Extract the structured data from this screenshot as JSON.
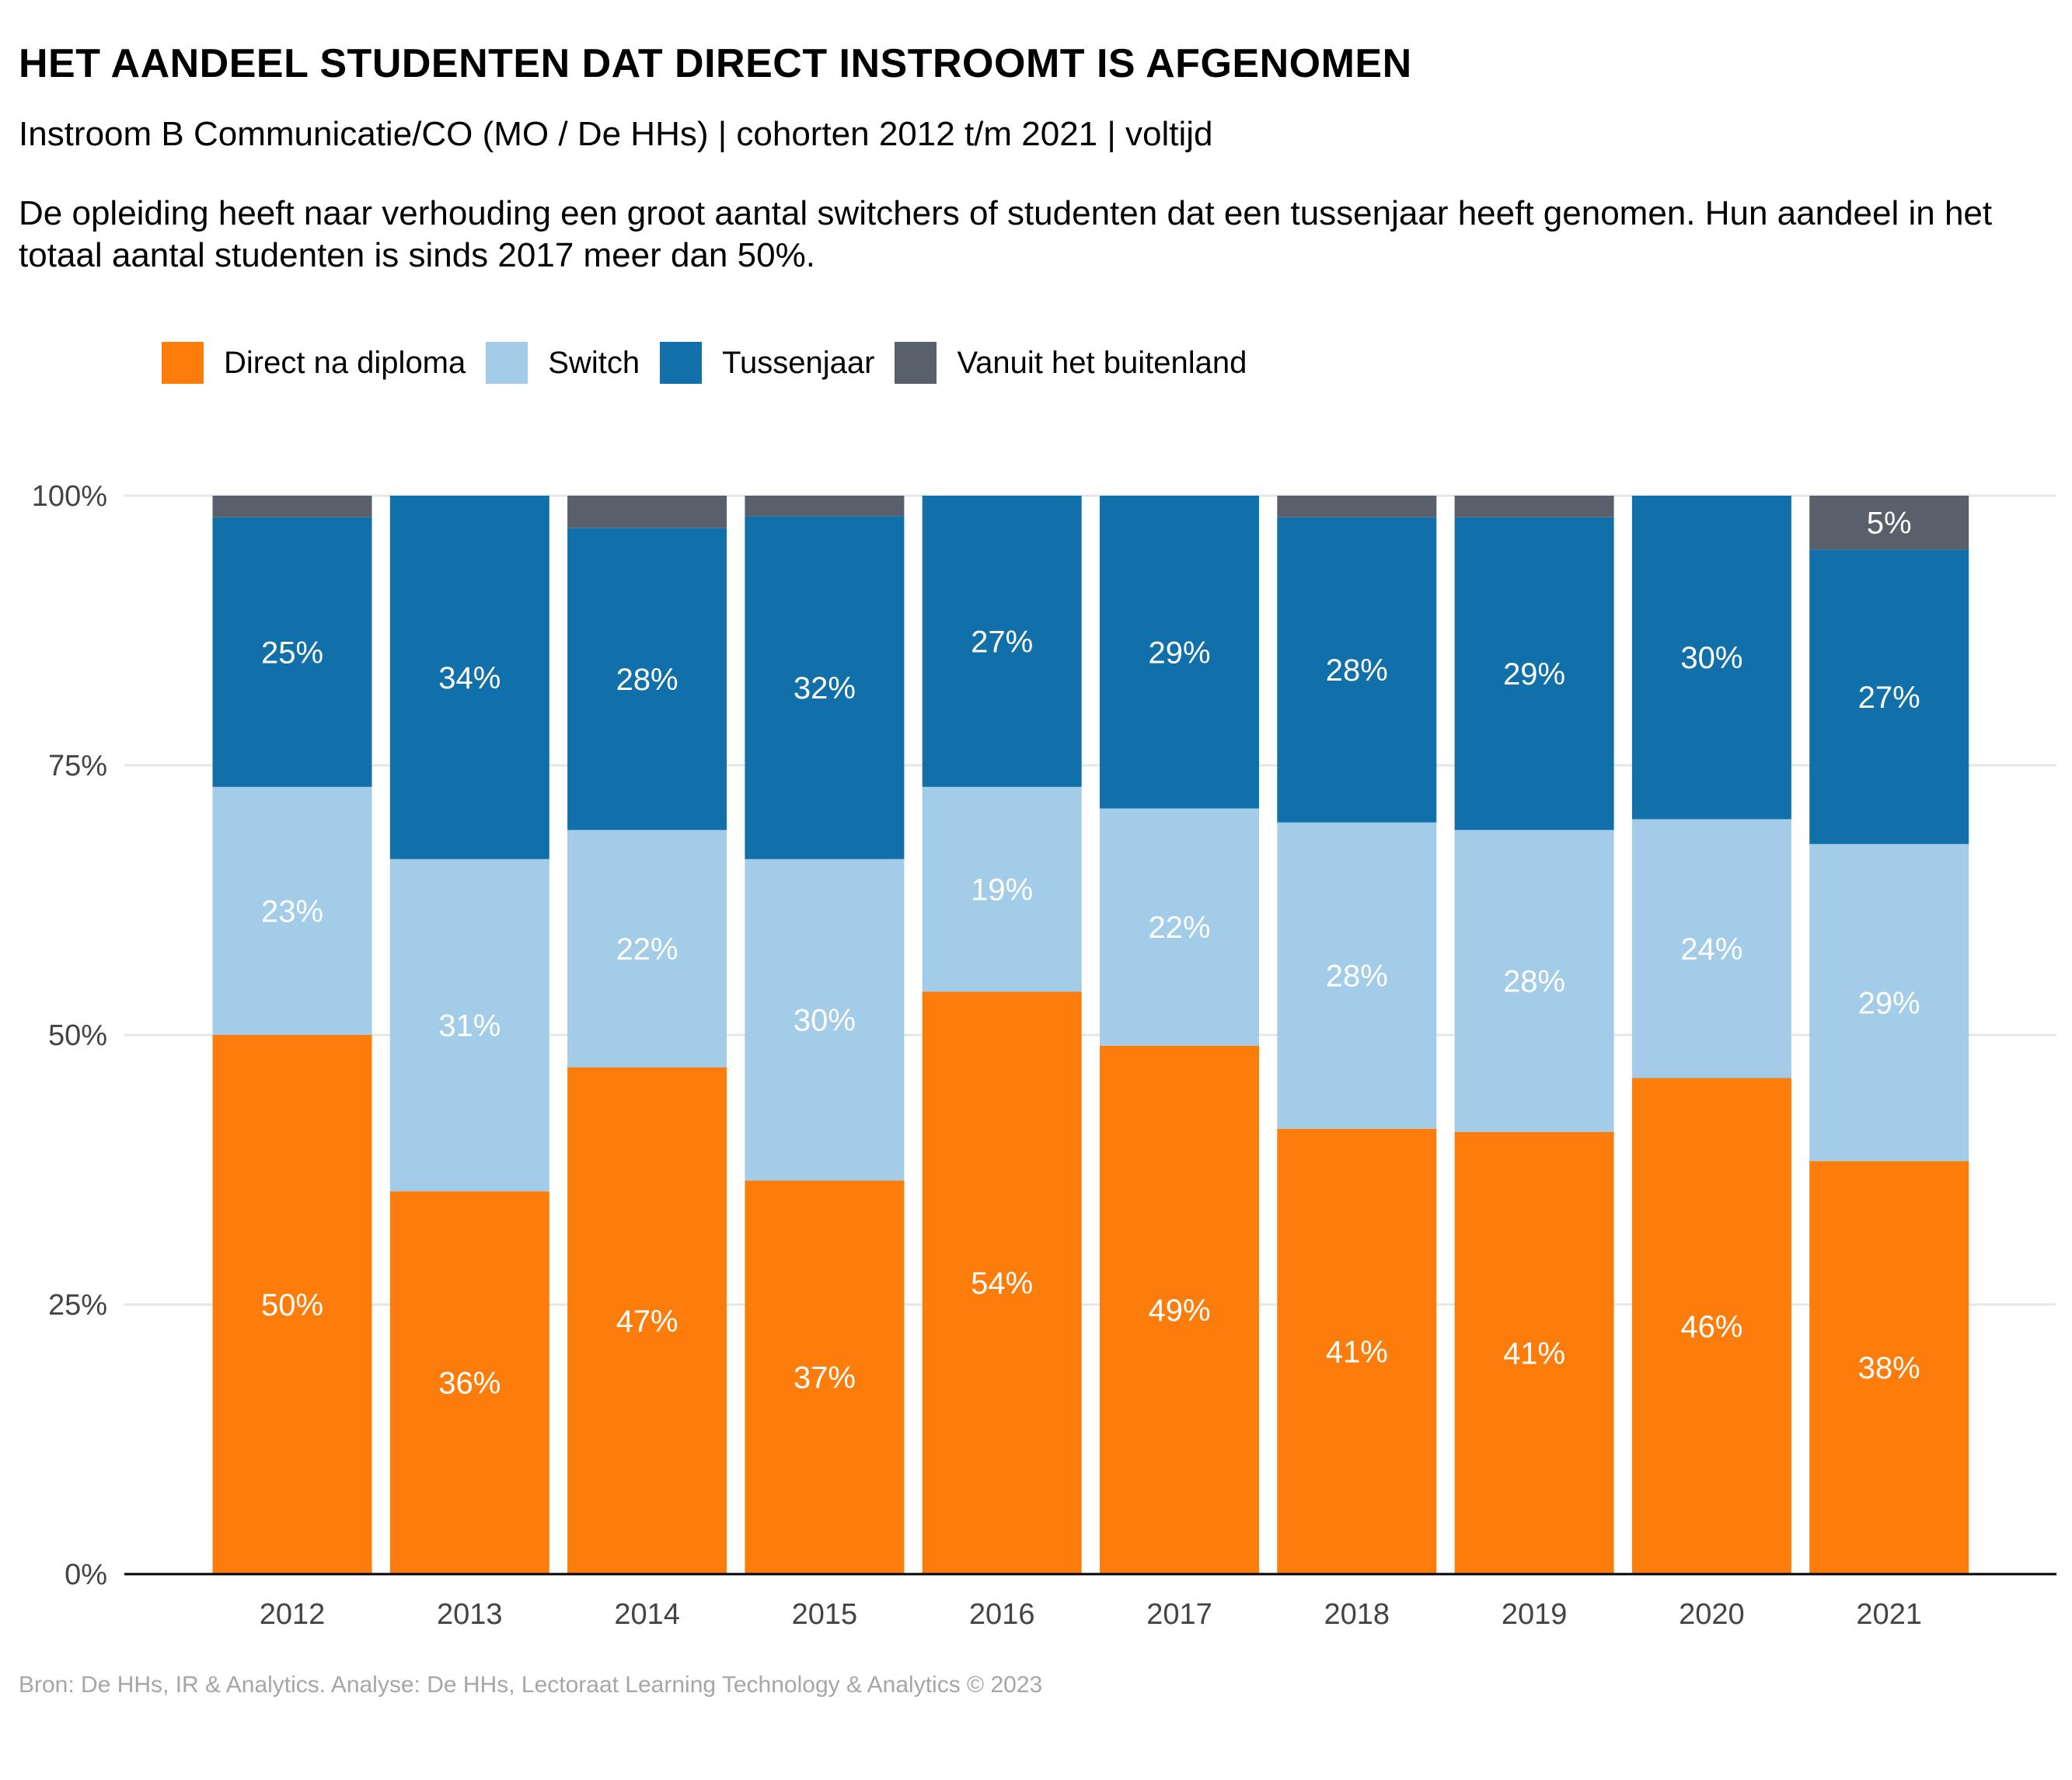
{
  "title": "HET AANDEEL STUDENTEN DAT DIRECT INSTROOMT IS AFGENOMEN",
  "subtitle": "Instroom B Communicatie/CO (MO / De HHs) | cohorten 2012 t/m 2021 | voltijd",
  "description": "De opleiding heeft naar verhouding een groot aantal switchers of studenten dat een tussenjaar heeft genomen. Hun aandeel in het totaal aantal studenten is sinds 2017 meer dan 50%.",
  "caption": "Bron: De HHs, IR & Analytics. Analyse: De HHs, Lectoraat Learning Technology & Analytics © 2023",
  "legend": [
    {
      "label": "Direct na diploma",
      "color": "#FC7D0B"
    },
    {
      "label": "Switch",
      "color": "#A3CCE9"
    },
    {
      "label": "Tussenjaar",
      "color": "#1170AA"
    },
    {
      "label": "Vanuit het buitenland",
      "color": "#5A606B"
    }
  ],
  "chart_data": {
    "type": "bar",
    "stacked": true,
    "categories": [
      "2012",
      "2013",
      "2014",
      "2015",
      "2016",
      "2017",
      "2018",
      "2019",
      "2020",
      "2021"
    ],
    "ylim": [
      0,
      100
    ],
    "yticks": [
      "0%",
      "25%",
      "50%",
      "75%",
      "100%"
    ],
    "ytick_values": [
      0,
      25,
      50,
      75,
      100
    ],
    "grid": true,
    "legend_position": "top-left",
    "series": [
      {
        "name": "Direct na diploma",
        "color": "#FC7D0B",
        "values": [
          50,
          35.5,
          47,
          36.5,
          54,
          49,
          41.3,
          41,
          46,
          38.3
        ],
        "labels": [
          "50%",
          "36%",
          "47%",
          "37%",
          "54%",
          "49%",
          "41%",
          "41%",
          "46%",
          "38%"
        ]
      },
      {
        "name": "Switch",
        "color": "#A3CCE9",
        "values": [
          23,
          30.8,
          22,
          29.8,
          19,
          22,
          28.4,
          28,
          24,
          29.4
        ],
        "labels": [
          "23%",
          "31%",
          "22%",
          "30%",
          "19%",
          "22%",
          "28%",
          "28%",
          "24%",
          "29%"
        ]
      },
      {
        "name": "Tussenjaar",
        "color": "#1170AA",
        "values": [
          25,
          33.7,
          28,
          31.8,
          27,
          29,
          28.3,
          29,
          30,
          27.3
        ],
        "labels": [
          "25%",
          "34%",
          "28%",
          "32%",
          "27%",
          "29%",
          "28%",
          "29%",
          "30%",
          "27%"
        ]
      },
      {
        "name": "Vanuit het buitenland",
        "color": "#5A606B",
        "values": [
          2,
          0,
          3,
          1.9,
          0,
          0,
          2,
          2,
          0,
          5
        ],
        "labels": [
          "",
          "",
          "",
          "",
          "",
          "",
          "",
          "",
          "",
          "5%"
        ]
      }
    ]
  }
}
